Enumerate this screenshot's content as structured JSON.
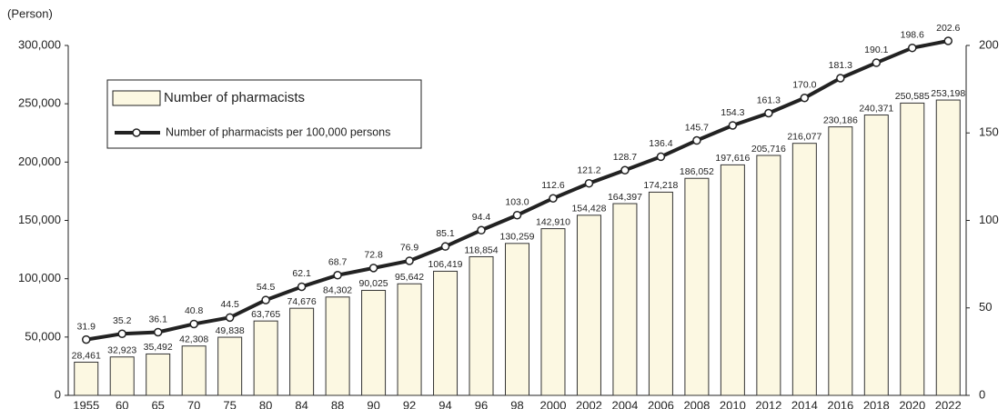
{
  "chart_data": {
    "type": "bar_line",
    "y_axis_label": "(Person)",
    "categories": [
      "1955",
      "60",
      "65",
      "70",
      "75",
      "80",
      "84",
      "88",
      "90",
      "92",
      "94",
      "96",
      "98",
      "2000",
      "2002",
      "2004",
      "2006",
      "2008",
      "2010",
      "2012",
      "2014",
      "2016",
      "2018",
      "2020",
      "2022"
    ],
    "series": [
      {
        "name": "Number of pharmacists",
        "type": "bar",
        "color": "#fcf8e2",
        "values": [
          28461,
          32923,
          35492,
          42308,
          49838,
          63765,
          74676,
          84302,
          90025,
          95642,
          106419,
          118854,
          130259,
          142910,
          154428,
          164397,
          174218,
          186052,
          197616,
          205716,
          216077,
          230186,
          240371,
          250585,
          253198
        ],
        "value_labels": [
          "28,461",
          "32,923",
          "35,492",
          "42,308",
          "49,838",
          "63,765",
          "74,676",
          "84,302",
          "90,025",
          "95,642",
          "106,419",
          "118,854",
          "130,259",
          "142,910",
          "154,428",
          "164,397",
          "174,218",
          "186,052",
          "197,616",
          "205,716",
          "216,077",
          "230,186",
          "240,371",
          "250,585",
          "253,198"
        ]
      },
      {
        "name": "Number of pharmacists per 100,000 persons",
        "type": "line",
        "axis": "y2",
        "color": "#222222",
        "values": [
          31.9,
          35.2,
          36.1,
          40.8,
          44.5,
          54.5,
          62.1,
          68.7,
          72.8,
          76.9,
          85.1,
          94.4,
          103.0,
          112.6,
          121.2,
          128.7,
          136.4,
          145.7,
          154.3,
          161.3,
          170.0,
          181.3,
          190.1,
          198.6,
          202.6
        ],
        "value_labels": [
          "31.9",
          "35.2",
          "36.1",
          "40.8",
          "44.5",
          "54.5",
          "62.1",
          "68.7",
          "72.8",
          "76.9",
          "85.1",
          "94.4",
          "103.0",
          "112.6",
          "121.2",
          "128.7",
          "136.4",
          "145.7",
          "154.3",
          "161.3",
          "170.0",
          "181.3",
          "190.1",
          "198.6",
          "202.6"
        ]
      }
    ],
    "ylim": [
      0,
      300000
    ],
    "yticks": [
      0,
      {
        "value": 50000,
        "label": "50,000"
      },
      {
        "value": 100000,
        "label": "100,000"
      },
      {
        "value": 150000,
        "label": "150,000"
      },
      {
        "value": 200000,
        "label": "200,000"
      },
      {
        "value": 250000,
        "label": "250,000"
      },
      {
        "value": 300000,
        "label": "300,000"
      }
    ],
    "y2lim": [
      0,
      200
    ],
    "y2ticks": [
      0,
      50,
      100,
      150,
      200
    ],
    "legend": "upper left"
  }
}
